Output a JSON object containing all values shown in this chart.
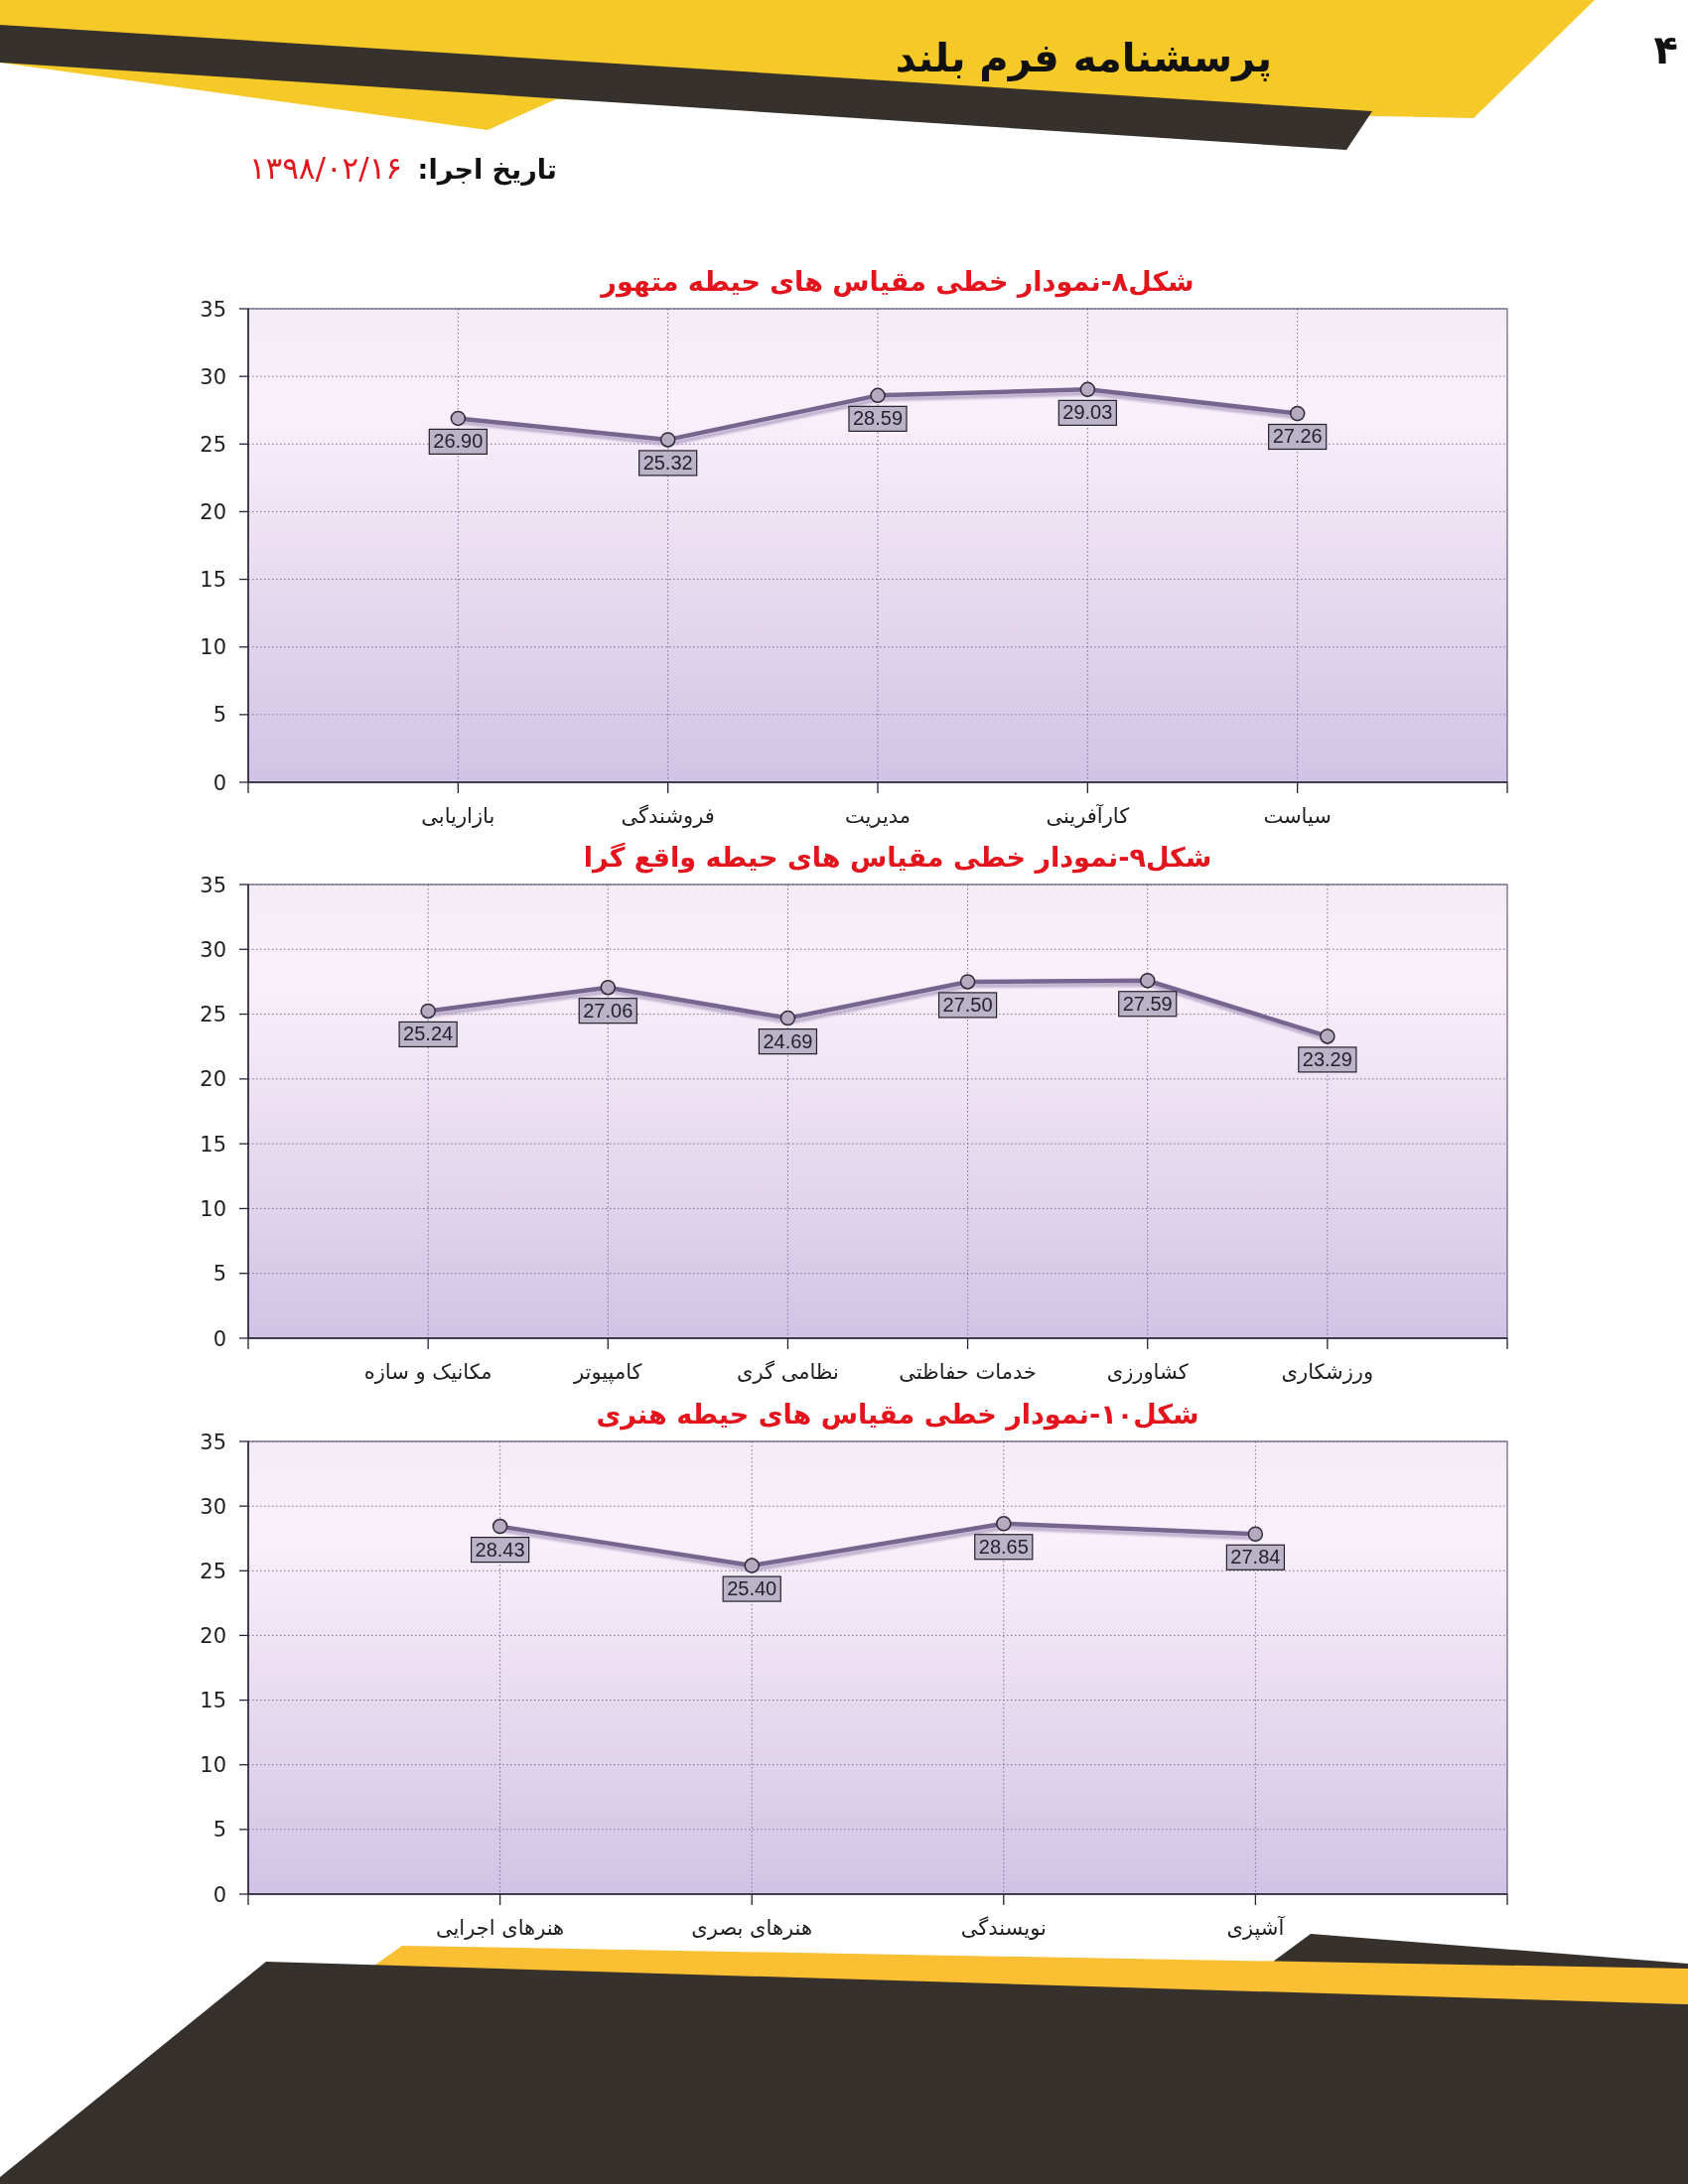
{
  "chart_data": [
    {
      "type": "other",
      "title": "پرسشنامه فرم بلند",
      "annotations": [
        "تاریخ اجرا:",
        "۱۳۹۸/۰۲/۱۶",
        "۴"
      ]
    },
    {
      "type": "line",
      "title": "شکل۸-نمودار خطی مقیاس های حیطه متهور",
      "categories": [
        "بازاریابی",
        "فروشندگی",
        "مدیریت",
        "کارآفرینی",
        "سیاست"
      ],
      "series": [
        {
          "color": "#76668f",
          "values": [
            26.9,
            25.32,
            28.59,
            29.03,
            27.26
          ],
          "value_labels": [
            "26.90",
            "25.32",
            "28.59",
            "29.03",
            "27.26"
          ]
        }
      ],
      "ylim": [
        0,
        35
      ],
      "yticks": [
        0,
        5,
        10,
        15,
        20,
        25,
        30,
        35
      ],
      "grid": true,
      "marker": "circle"
    },
    {
      "type": "line",
      "title": "شکل۹-نمودار خطی مقیاس های حیطه واقع گرا",
      "categories": [
        "مکانیک و سازه",
        "کامپیوتر",
        "نظامی گری",
        "خدمات حفاظتی",
        "کشاورزی",
        "ورزشکاری"
      ],
      "series": [
        {
          "color": "#76668f",
          "values": [
            25.24,
            27.06,
            24.69,
            27.5,
            27.59,
            23.29
          ],
          "value_labels": [
            "25.24",
            "27.06",
            "24.69",
            "27.50",
            "27.59",
            "23.29"
          ]
        }
      ],
      "ylim": [
        0,
        35
      ],
      "yticks": [
        0,
        5,
        10,
        15,
        20,
        25,
        30,
        35
      ],
      "grid": true,
      "marker": "circle"
    },
    {
      "type": "line",
      "title": "شکل۱۰-نمودار خطی مقیاس های حیطه هنری",
      "categories": [
        "هنرهای اجرایی",
        "هنرهای بصری",
        "نویسندگی",
        "آشپزی"
      ],
      "series": [
        {
          "color": "#76668f",
          "values": [
            28.43,
            25.4,
            28.65,
            27.84
          ],
          "value_labels": [
            "28.43",
            "25.40",
            "28.65",
            "27.84"
          ]
        }
      ],
      "ylim": [
        0,
        35
      ],
      "yticks": [
        0,
        5,
        10,
        15,
        20,
        25,
        30,
        35
      ],
      "grid": true,
      "marker": "circle"
    }
  ]
}
